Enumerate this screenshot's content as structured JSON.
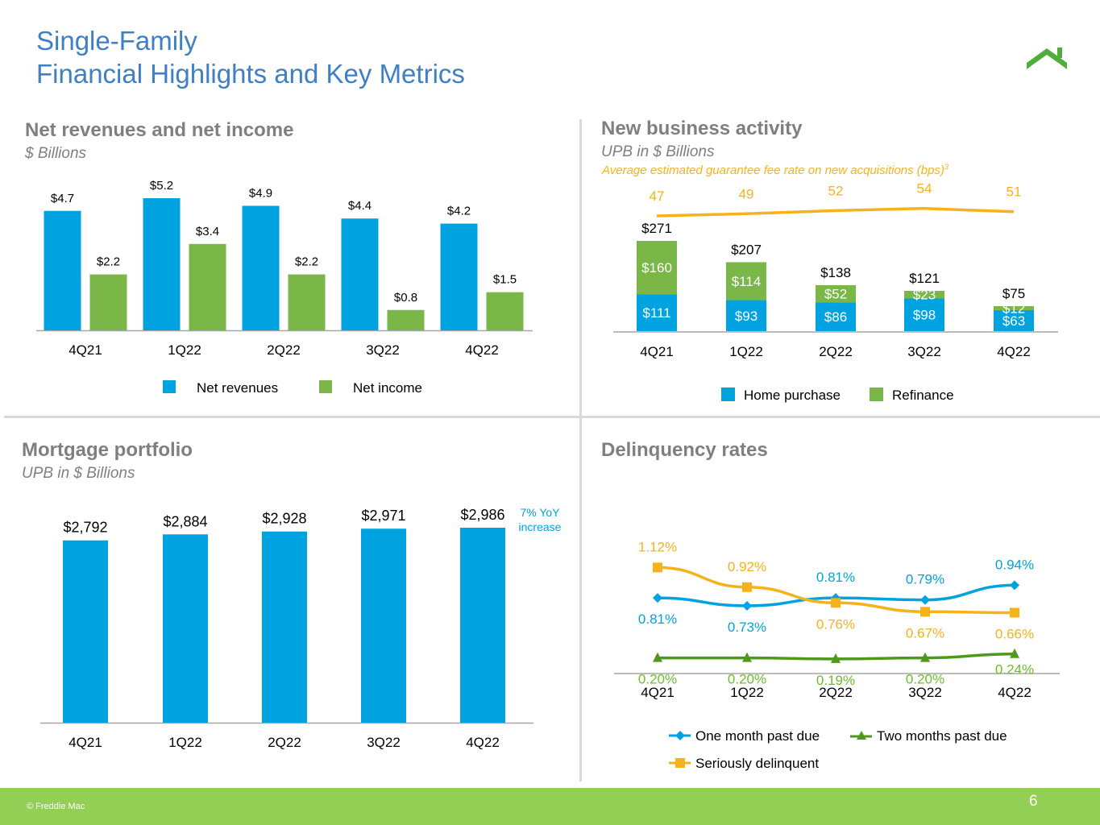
{
  "page": {
    "title_line1": "Single-Family",
    "title_line2": "Financial Highlights and Key Metrics",
    "footer_copyright": "© Freddie Mac",
    "page_number": "6",
    "logo_icon": "house-roof-icon"
  },
  "colors": {
    "blue": "#00a3e0",
    "green": "#7ab648",
    "orange": "#f6b21b",
    "dark_green": "#4d9a1a",
    "title_blue": "#3f7fc4",
    "footer": "#93cf55"
  },
  "chart_data": [
    {
      "id": "net-revenues",
      "type": "bar",
      "title": "Net revenues and net income",
      "subtitle": "$ Billions",
      "categories": [
        "4Q21",
        "1Q22",
        "2Q22",
        "3Q22",
        "4Q22"
      ],
      "series": [
        {
          "name": "Net revenues",
          "values": [
            4.7,
            5.2,
            4.9,
            4.4,
            4.2
          ],
          "labels": [
            "$4.7",
            "$5.2",
            "$4.9",
            "$4.4",
            "$4.2"
          ]
        },
        {
          "name": "Net income",
          "values": [
            2.2,
            3.4,
            2.2,
            0.8,
            1.5
          ],
          "labels": [
            "$2.2",
            "$3.4",
            "$2.2",
            "$0.8",
            "$1.5"
          ]
        }
      ],
      "ylim": [
        0,
        5.2
      ]
    },
    {
      "id": "new-business",
      "type": "bar",
      "stacked": true,
      "title": "New business activity",
      "subtitle": "UPB in $ Billions",
      "categories": [
        "4Q21",
        "1Q22",
        "2Q22",
        "3Q22",
        "4Q22"
      ],
      "series": [
        {
          "name": "Home purchase",
          "values": [
            111,
            93,
            86,
            98,
            63
          ],
          "labels": [
            "$111",
            "$93",
            "$86",
            "$98",
            "$63"
          ]
        },
        {
          "name": "Refinance",
          "values": [
            160,
            114,
            52,
            23,
            12
          ],
          "labels": [
            "$160",
            "$114",
            "$52",
            "$23",
            "$12"
          ]
        }
      ],
      "totals": [
        "$271",
        "$207",
        "$138",
        "$121",
        "$75"
      ],
      "overlay_line": {
        "name": "Average estimated guarantee fee rate on new acquisitions (bps)",
        "superscript": "3",
        "values": [
          47,
          49,
          52,
          54,
          51
        ],
        "labels": [
          "47",
          "49",
          "52",
          "54",
          "51"
        ]
      },
      "ylim": [
        0,
        271
      ]
    },
    {
      "id": "mortgage-portfolio",
      "type": "bar",
      "title": "Mortgage portfolio",
      "subtitle": "UPB in $ Billions",
      "categories": [
        "4Q21",
        "1Q22",
        "2Q22",
        "3Q22",
        "4Q22"
      ],
      "series": [
        {
          "name": "Mortgage portfolio",
          "values": [
            2792,
            2884,
            2928,
            2971,
            2986
          ],
          "labels": [
            "$2,792",
            "$2,884",
            "$2,928",
            "$2,971",
            "$2,986"
          ]
        }
      ],
      "annotation_line1": "7% YoY",
      "annotation_line2": "increase",
      "ylim": [
        0,
        2986
      ]
    },
    {
      "id": "delinquency",
      "type": "line",
      "title": "Delinquency rates",
      "categories": [
        "4Q21",
        "1Q22",
        "2Q22",
        "3Q22",
        "4Q22"
      ],
      "series": [
        {
          "name": "One month past due",
          "values": [
            0.81,
            0.73,
            0.81,
            0.79,
            0.94
          ],
          "labels": [
            "0.81%",
            "0.73%",
            "0.81%",
            "0.79%",
            "0.94%"
          ]
        },
        {
          "name": "Two months past due",
          "values": [
            0.2,
            0.2,
            0.19,
            0.2,
            0.24
          ],
          "labels": [
            "0.20%",
            "0.20%",
            "0.19%",
            "0.20%",
            "0.24%"
          ]
        },
        {
          "name": "Seriously delinquent",
          "values": [
            1.12,
            0.92,
            0.76,
            0.67,
            0.66
          ],
          "labels": [
            "1.12%",
            "0.92%",
            "0.76%",
            "0.67%",
            "0.66%"
          ]
        }
      ],
      "ylim": [
        0,
        1.2
      ]
    }
  ]
}
